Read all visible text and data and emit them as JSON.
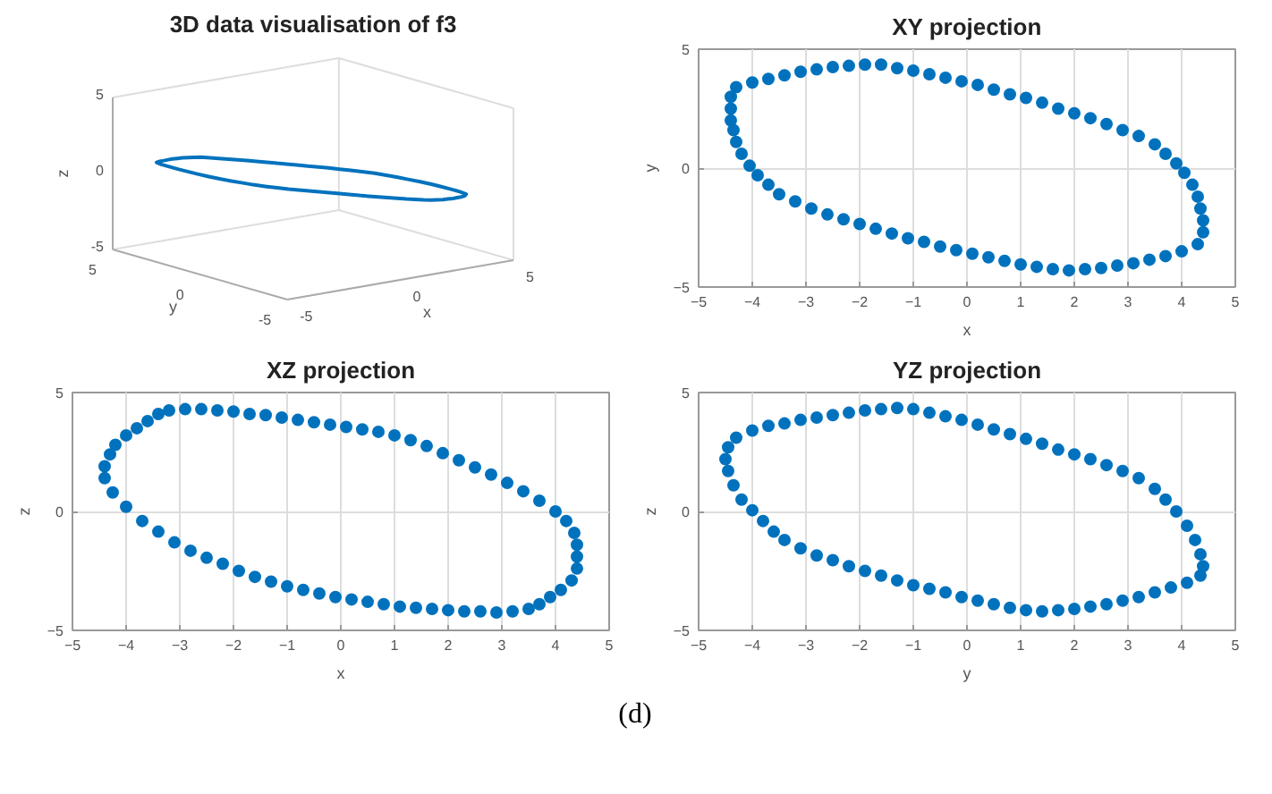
{
  "chart_data": [
    {
      "type": "other",
      "title": "3D data visualisation of f3",
      "xlabel": "x",
      "ylabel": "y",
      "annotations": [
        "z",
        "-5",
        "0",
        "5",
        "-5",
        "0",
        "5",
        "-5",
        "0",
        "5"
      ]
    },
    {
      "type": "scatter",
      "title": "XY projection",
      "xlabel": "x",
      "ylabel": "y",
      "xlim": [
        -5,
        5
      ],
      "ylim": [
        -5,
        5
      ],
      "xticks": [
        -5,
        -4,
        -3,
        -2,
        -1,
        0,
        1,
        2,
        3,
        4,
        5
      ],
      "yticks": [
        -5,
        0,
        5
      ],
      "grid": true,
      "marker": "circle",
      "series": [
        {
          "color": "#0072bd",
          "x": [
            -4.4,
            -4.4,
            -4.3,
            -4.0,
            -3.7,
            -3.4,
            -3.1,
            -2.8,
            -2.5,
            -2.2,
            -1.9,
            -1.6,
            -1.3,
            -1.0,
            -0.7,
            -0.4,
            -0.1,
            0.2,
            0.5,
            0.8,
            1.1,
            1.4,
            1.7,
            2.0,
            2.3,
            2.6,
            2.9,
            3.2,
            3.5,
            3.7,
            3.9,
            4.05,
            4.2,
            4.3,
            4.35,
            4.4,
            4.4,
            4.3,
            4.0,
            3.7,
            3.4,
            3.1,
            2.8,
            2.5,
            2.2,
            1.9,
            1.6,
            1.3,
            1.0,
            0.7,
            0.4,
            0.1,
            -0.2,
            -0.5,
            -0.8,
            -1.1,
            -1.4,
            -1.7,
            -2.0,
            -2.3,
            -2.6,
            -2.9,
            -3.2,
            -3.5,
            -3.7,
            -3.9,
            -4.05,
            -4.2,
            -4.3,
            -4.35,
            -4.4
          ],
          "values": [
            2.5,
            3.0,
            3.4,
            3.6,
            3.75,
            3.9,
            4.05,
            4.15,
            4.25,
            4.3,
            4.35,
            4.35,
            4.2,
            4.1,
            3.95,
            3.8,
            3.65,
            3.5,
            3.3,
            3.1,
            2.95,
            2.75,
            2.5,
            2.3,
            2.1,
            1.85,
            1.6,
            1.35,
            1.0,
            0.6,
            0.2,
            -0.2,
            -0.7,
            -1.2,
            -1.7,
            -2.2,
            -2.7,
            -3.2,
            -3.5,
            -3.7,
            -3.85,
            -4.0,
            -4.1,
            -4.2,
            -4.25,
            -4.3,
            -4.25,
            -4.15,
            -4.05,
            -3.9,
            -3.75,
            -3.6,
            -3.45,
            -3.3,
            -3.1,
            -2.95,
            -2.75,
            -2.55,
            -2.35,
            -2.15,
            -1.95,
            -1.7,
            -1.4,
            -1.1,
            -0.7,
            -0.3,
            0.1,
            0.6,
            1.1,
            1.6,
            2.0
          ]
        }
      ]
    },
    {
      "type": "scatter",
      "title": "XZ projection",
      "xlabel": "x",
      "ylabel": "z",
      "xlim": [
        -5,
        5
      ],
      "ylim": [
        -5,
        5
      ],
      "xticks": [
        -5,
        -4,
        -3,
        -2,
        -1,
        0,
        1,
        2,
        3,
        4,
        5
      ],
      "yticks": [
        -5,
        0,
        5
      ],
      "grid": true,
      "marker": "circle",
      "series": [
        {
          "color": "#0072bd",
          "x": [
            -4.4,
            -4.4,
            -4.3,
            -4.2,
            -4.0,
            -3.8,
            -3.6,
            -3.4,
            -3.2,
            -2.9,
            -2.6,
            -2.3,
            -2.0,
            -1.7,
            -1.4,
            -1.1,
            -0.8,
            -0.5,
            -0.2,
            0.1,
            0.4,
            0.7,
            1.0,
            1.3,
            1.6,
            1.9,
            2.2,
            2.5,
            2.8,
            3.1,
            3.4,
            3.7,
            4.0,
            4.2,
            4.35,
            4.4,
            4.4,
            4.4,
            4.3,
            4.1,
            3.9,
            3.7,
            3.5,
            3.2,
            2.9,
            2.6,
            2.3,
            2.0,
            1.7,
            1.4,
            1.1,
            0.8,
            0.5,
            0.2,
            -0.1,
            -0.4,
            -0.7,
            -1.0,
            -1.3,
            -1.6,
            -1.9,
            -2.2,
            -2.5,
            -2.8,
            -3.1,
            -3.4,
            -3.7,
            -4.0,
            -4.25
          ],
          "values": [
            1.4,
            1.9,
            2.4,
            2.8,
            3.2,
            3.5,
            3.8,
            4.1,
            4.25,
            4.3,
            4.3,
            4.25,
            4.2,
            4.1,
            4.05,
            3.95,
            3.85,
            3.75,
            3.65,
            3.55,
            3.45,
            3.35,
            3.2,
            3.0,
            2.75,
            2.45,
            2.15,
            1.85,
            1.55,
            1.2,
            0.85,
            0.45,
            0.0,
            -0.4,
            -0.9,
            -1.4,
            -1.9,
            -2.4,
            -2.9,
            -3.3,
            -3.6,
            -3.9,
            -4.1,
            -4.2,
            -4.25,
            -4.2,
            -4.2,
            -4.15,
            -4.1,
            -4.05,
            -4.0,
            -3.9,
            -3.8,
            -3.7,
            -3.6,
            -3.45,
            -3.3,
            -3.15,
            -2.95,
            -2.75,
            -2.5,
            -2.2,
            -1.95,
            -1.65,
            -1.3,
            -0.85,
            -0.4,
            0.2,
            0.8
          ]
        }
      ]
    },
    {
      "type": "scatter",
      "title": "YZ projection",
      "xlabel": "y",
      "ylabel": "z",
      "xlim": [
        -5,
        5
      ],
      "ylim": [
        -5,
        5
      ],
      "xticks": [
        -5,
        -4,
        -3,
        -2,
        -1,
        0,
        1,
        2,
        3,
        4,
        5
      ],
      "yticks": [
        -5,
        0,
        5
      ],
      "grid": true,
      "marker": "circle",
      "annotations": [
        "(d)"
      ],
      "series": [
        {
          "color": "#0072bd",
          "x": [
            -4.5,
            -4.45,
            -4.3,
            -4.0,
            -3.7,
            -3.4,
            -3.1,
            -2.8,
            -2.5,
            -2.2,
            -1.9,
            -1.6,
            -1.3,
            -1.0,
            -0.7,
            -0.4,
            -0.1,
            0.2,
            0.5,
            0.8,
            1.1,
            1.4,
            1.7,
            2.0,
            2.3,
            2.6,
            2.9,
            3.2,
            3.5,
            3.7,
            3.9,
            4.1,
            4.25,
            4.35,
            4.4,
            4.35,
            4.1,
            3.8,
            3.5,
            3.2,
            2.9,
            2.6,
            2.3,
            2.0,
            1.7,
            1.4,
            1.1,
            0.8,
            0.5,
            0.2,
            -0.1,
            -0.4,
            -0.7,
            -1.0,
            -1.3,
            -1.6,
            -1.9,
            -2.2,
            -2.5,
            -2.8,
            -3.1,
            -3.4,
            -3.6,
            -3.8,
            -4.0,
            -4.2,
            -4.35,
            -4.45
          ],
          "values": [
            2.2,
            2.7,
            3.1,
            3.4,
            3.6,
            3.7,
            3.85,
            3.95,
            4.05,
            4.15,
            4.25,
            4.3,
            4.35,
            4.3,
            4.15,
            4.0,
            3.85,
            3.65,
            3.45,
            3.25,
            3.05,
            2.85,
            2.6,
            2.4,
            2.2,
            1.95,
            1.7,
            1.4,
            0.95,
            0.5,
            0.0,
            -0.6,
            -1.2,
            -1.8,
            -2.3,
            -2.7,
            -3.0,
            -3.2,
            -3.4,
            -3.6,
            -3.75,
            -3.9,
            -4.0,
            -4.1,
            -4.15,
            -4.2,
            -4.15,
            -4.05,
            -3.9,
            -3.75,
            -3.6,
            -3.4,
            -3.25,
            -3.1,
            -2.9,
            -2.7,
            -2.5,
            -2.3,
            -2.05,
            -1.85,
            -1.55,
            -1.2,
            -0.85,
            -0.4,
            0.05,
            0.5,
            1.1,
            1.7
          ]
        }
      ]
    }
  ]
}
